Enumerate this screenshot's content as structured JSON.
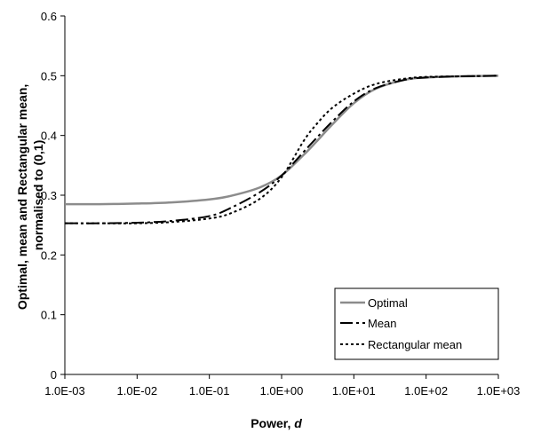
{
  "chart_data": {
    "type": "line",
    "xscale": "log",
    "xlim": [
      0.001,
      1000
    ],
    "ylim": [
      0,
      0.6
    ],
    "x_ticks": [
      "1.0E-03",
      "1.0E-02",
      "1.0E-01",
      "1.0E+00",
      "1.0E+01",
      "1.0E+02",
      "1.0E+03"
    ],
    "y_ticks": [
      "0",
      "0.1",
      "0.2",
      "0.3",
      "0.4",
      "0.5",
      "0.6"
    ],
    "xlabel_prefix": "Power, ",
    "xlabel_var": "d",
    "ylabel_lines": [
      "Optimal, mean and Rectangular mean,",
      "normalised to (0,1)"
    ],
    "legend_position": "bottom-right",
    "grid": false,
    "x": [
      0.001,
      0.003,
      0.01,
      0.03,
      0.1,
      0.2,
      0.5,
      1,
      2,
      3,
      5,
      10,
      20,
      50,
      100,
      300,
      1000
    ],
    "series": [
      {
        "name": "Optimal",
        "color": "#8c8c8c",
        "style": "solid",
        "values": [
          0.285,
          0.285,
          0.286,
          0.288,
          0.293,
          0.299,
          0.313,
          0.333,
          0.367,
          0.389,
          0.418,
          0.454,
          0.478,
          0.493,
          0.497,
          0.499,
          0.5
        ]
      },
      {
        "name": "Mean",
        "color": "#000000",
        "style": "longdash",
        "values": [
          0.253,
          0.253,
          0.254,
          0.257,
          0.265,
          0.279,
          0.305,
          0.333,
          0.372,
          0.395,
          0.423,
          0.457,
          0.479,
          0.493,
          0.497,
          0.499,
          0.5
        ]
      },
      {
        "name": "Rectangular mean",
        "color": "#000000",
        "style": "dotted",
        "values": [
          0.253,
          0.253,
          0.253,
          0.255,
          0.261,
          0.27,
          0.294,
          0.33,
          0.39,
          0.418,
          0.446,
          0.47,
          0.486,
          0.495,
          0.498,
          0.499,
          0.5
        ]
      }
    ]
  }
}
